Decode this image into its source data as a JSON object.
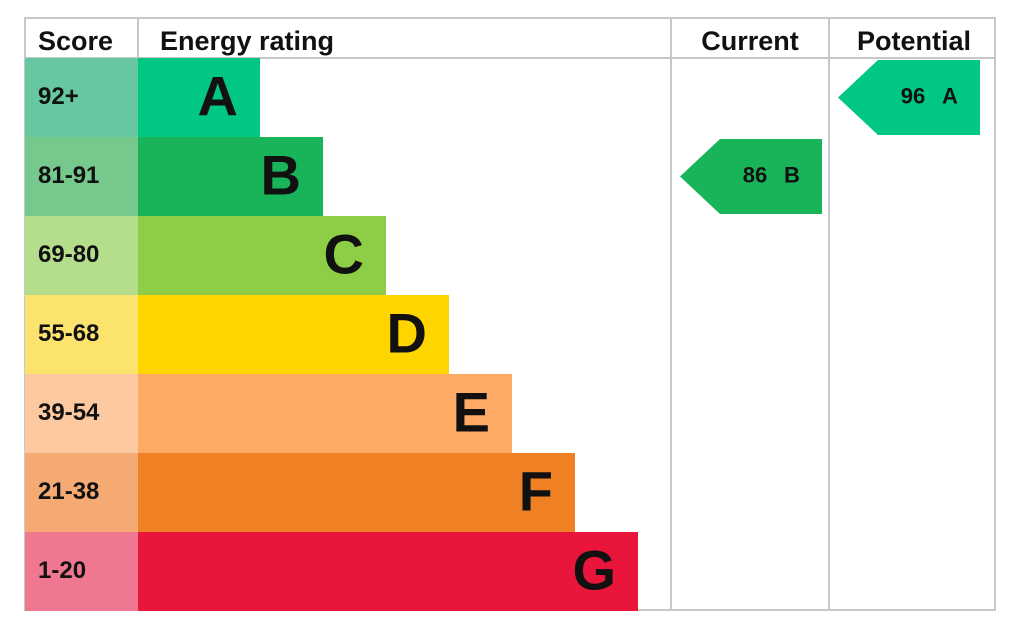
{
  "header": {
    "score": "Score",
    "rating": "Energy rating",
    "current": "Current",
    "potential": "Potential"
  },
  "bands": [
    {
      "score": "92+",
      "letter": "A",
      "color": "#00c781",
      "tint": "#66c7a1"
    },
    {
      "score": "81-91",
      "letter": "B",
      "color": "#19b459",
      "tint": "#75c98c"
    },
    {
      "score": "69-80",
      "letter": "C",
      "color": "#8dce46",
      "tint": "#b5de8c"
    },
    {
      "score": "55-68",
      "letter": "D",
      "color": "#ffd500",
      "tint": "#fce36e"
    },
    {
      "score": "39-54",
      "letter": "E",
      "color": "#fcaa65",
      "tint": "#fdc9a0"
    },
    {
      "score": "21-38",
      "letter": "F",
      "color": "#ef8023",
      "tint": "#f5aa73"
    },
    {
      "score": "1-20",
      "letter": "G",
      "color": "#e9153b",
      "tint": "#ef7890"
    }
  ],
  "current": {
    "value": 86,
    "letter": "B"
  },
  "potential": {
    "value": 96,
    "letter": "A"
  }
}
